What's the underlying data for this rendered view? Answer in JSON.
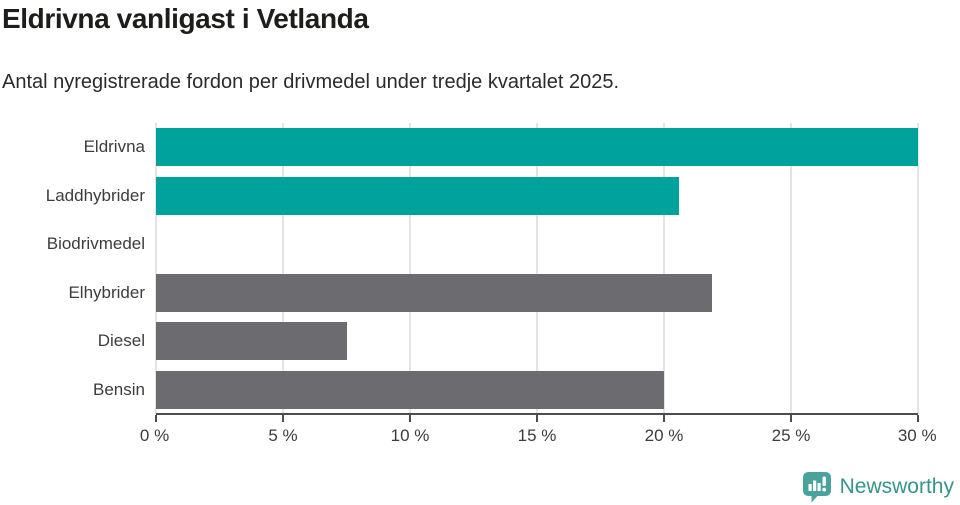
{
  "chart_data": {
    "type": "bar",
    "orientation": "horizontal",
    "title": "Eldrivna vanligast i Vetlanda",
    "subtitle": "Antal nyregistrerade fordon per drivmedel under tredje kvartalet 2025.",
    "categories": [
      "Eldrivna",
      "Laddhybrider",
      "Biodrivmedel",
      "Elhybrider",
      "Diesel",
      "Bensin"
    ],
    "values": [
      30,
      20.6,
      0,
      21.9,
      7.5,
      20
    ],
    "bar_colors": [
      "#00a39b",
      "#00a39b",
      "#00a39b",
      "#6c6c70",
      "#6c6c70",
      "#6c6c70"
    ],
    "xlabel": "",
    "ylabel": "",
    "xlim": [
      0,
      30
    ],
    "x_ticks": [
      0,
      5,
      10,
      15,
      20,
      25,
      30
    ],
    "x_tick_labels": [
      "0 %",
      "5 %",
      "10 %",
      "15 %",
      "20 %",
      "25 %",
      "30 %"
    ],
    "grid": "vertical",
    "legend": "none"
  },
  "footer": {
    "brand_name": "Newsworthy",
    "logo_icon": "bar-chart-speech-bubble-icon"
  },
  "colors": {
    "accent_teal": "#00a39b",
    "neutral_gray": "#6c6c70",
    "gridline": "#e4e4e4",
    "axis": "#4d4d4d",
    "title_text": "#1d1d1b",
    "body_text": "#3c3c3c",
    "brand_teal": "#37938c",
    "brand_icon_teal": "#4aa39b"
  }
}
